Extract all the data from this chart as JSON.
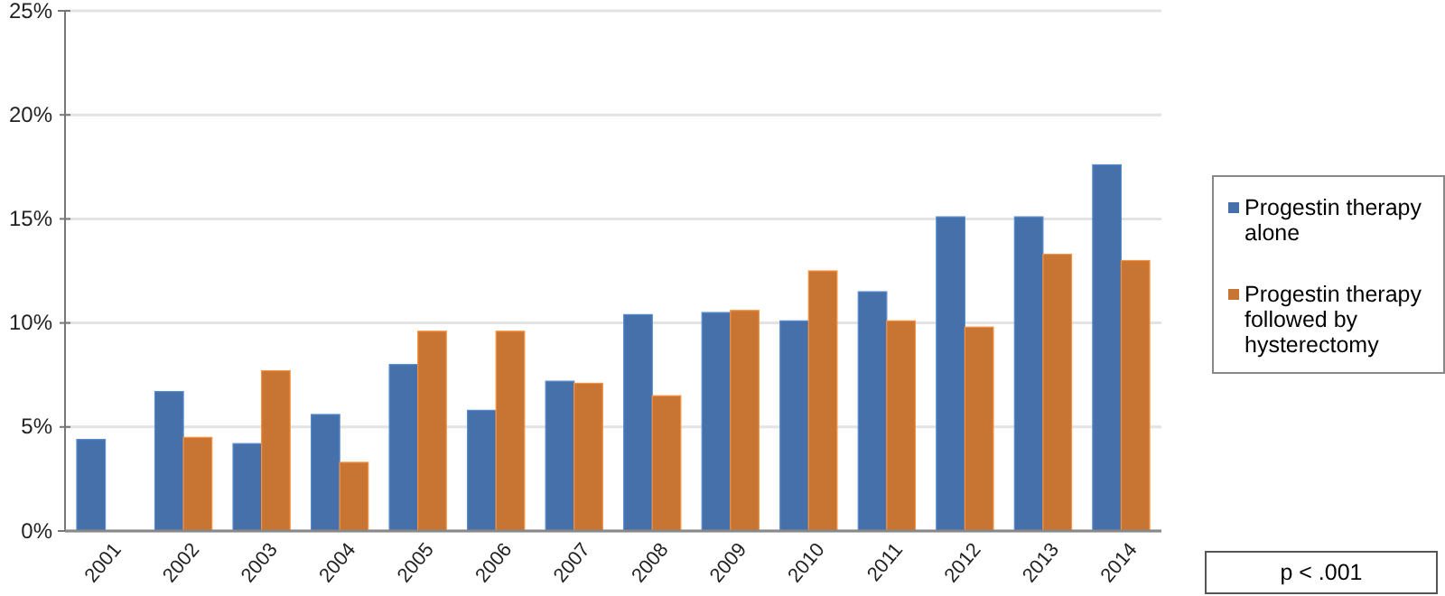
{
  "chart_data": {
    "type": "bar",
    "categories": [
      "2001",
      "2002",
      "2003",
      "2004",
      "2005",
      "2006",
      "2007",
      "2008",
      "2009",
      "2010",
      "2011",
      "2012",
      "2013",
      "2014"
    ],
    "series": [
      {
        "name": "Progestin therapy alone",
        "color": "#4570a9",
        "values": [
          4.4,
          6.7,
          4.2,
          5.6,
          8.0,
          5.8,
          7.2,
          10.4,
          10.5,
          10.1,
          11.5,
          15.1,
          15.1,
          17.6
        ]
      },
      {
        "name": "Progestin therapy followed by hysterectomy",
        "color": "#c87533",
        "values": [
          null,
          4.5,
          7.7,
          3.3,
          9.6,
          9.6,
          7.1,
          6.5,
          10.6,
          12.5,
          10.1,
          9.8,
          13.3,
          13.0
        ]
      }
    ],
    "ylim": [
      0,
      25
    ],
    "yticks": [
      {
        "value": 0,
        "label": "0%"
      },
      {
        "value": 5,
        "label": "5%"
      },
      {
        "value": 10,
        "label": "10%"
      },
      {
        "value": 15,
        "label": "15%"
      },
      {
        "value": 20,
        "label": "20%"
      },
      {
        "value": 25,
        "label": "25%"
      }
    ],
    "grid": "y",
    "legend": "right",
    "annotations": [
      "p < .001"
    ]
  }
}
